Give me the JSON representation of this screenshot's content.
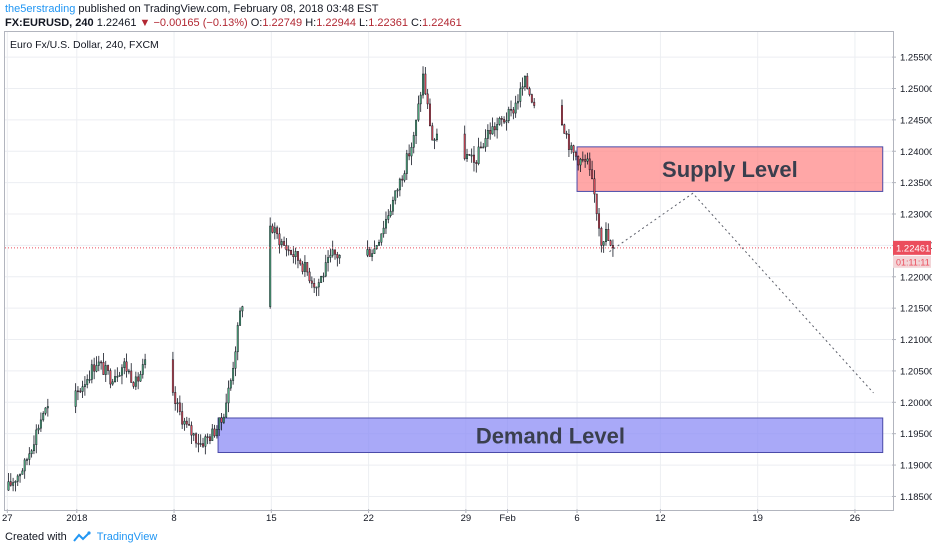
{
  "header": {
    "author": "the5erstrading",
    "published": "published on TradingView.com, February 08, 2018 03:48 EST",
    "symbol_line": "FX:EURUSD, 240",
    "price": "1.22461",
    "change": "−0.00165 (−0.13%)",
    "open_label": "O:",
    "open": "1.22749",
    "high_label": "H:",
    "high": "1.22944",
    "low_label": "L:",
    "low": "1.22361",
    "close_label": "C:",
    "close": "1.22461"
  },
  "footer": {
    "created_with": "Created with",
    "brand": "TradingView"
  },
  "chart_data": {
    "type": "candlestick",
    "title": "Euro Fx/U.S. Dollar, 240, FXCM",
    "colors": {
      "up": "#53b987",
      "down": "#eb4d5c",
      "wick": "#131722",
      "supply_fill": "#ff8a8a",
      "demand_fill": "#8c8cf5",
      "last_price": "#eb4d5c"
    },
    "y_ticks": [
      "1.18500",
      "1.19000",
      "1.19500",
      "1.20000",
      "1.20500",
      "1.21000",
      "1.21500",
      "1.22000",
      "1.22500",
      "1.23000",
      "1.23500",
      "1.24000",
      "1.24500",
      "1.25000",
      "1.25500"
    ],
    "x_ticks": [
      "27",
      "2018",
      "8",
      "15",
      "22",
      "29",
      "Feb",
      "6",
      "12",
      "19",
      "26"
    ],
    "last_price": 1.22461,
    "countdown": "01:11:11",
    "zones": [
      {
        "label": "Supply Level",
        "from": "2018-02-06T00:00",
        "to": "2018-02-28T00:00",
        "low": 1.2336,
        "high": 1.2407
      },
      {
        "label": "Demand Level",
        "from": "2018-01-11T04:00",
        "to": "2018-02-28T00:00",
        "low": 1.192,
        "high": 1.1975
      }
    ],
    "projection": [
      {
        "x": "2018-02-08T08:00",
        "y": 1.224
      },
      {
        "x": "2018-02-14T08:00",
        "y": 1.2333
      },
      {
        "x": "2018-02-27T08:00",
        "y": 1.2015
      }
    ],
    "waypoints": [
      {
        "x": "2017-12-27T00:00",
        "y": 1.186
      },
      {
        "x": "2017-12-28T08:00",
        "y": 1.19
      },
      {
        "x": "2017-12-29T16:00",
        "y": 1.1985
      },
      {
        "x": "2018-01-01T00:00",
        "y": 1.201
      },
      {
        "x": "2018-01-02T12:00",
        "y": 1.2065
      },
      {
        "x": "2018-01-03T12:00",
        "y": 1.204
      },
      {
        "x": "2018-01-04T12:00",
        "y": 1.206
      },
      {
        "x": "2018-01-05T08:00",
        "y": 1.203
      },
      {
        "x": "2018-01-06T08:00",
        "y": 1.2075
      },
      {
        "x": "2018-01-07T12:00",
        "y": 1.203
      },
      {
        "x": "2018-01-09T00:00",
        "y": 1.196
      },
      {
        "x": "2018-01-10T00:00",
        "y": 1.1935
      },
      {
        "x": "2018-01-10T20:00",
        "y": 1.195
      },
      {
        "x": "2018-01-11T12:00",
        "y": 1.197
      },
      {
        "x": "2018-01-12T04:00",
        "y": 1.2035
      },
      {
        "x": "2018-01-12T20:00",
        "y": 1.214
      },
      {
        "x": "2018-01-13T12:00",
        "y": 1.222
      },
      {
        "x": "2018-01-14T20:00",
        "y": 1.2285
      },
      {
        "x": "2018-01-16T00:00",
        "y": 1.225
      },
      {
        "x": "2018-01-17T04:00",
        "y": 1.2225
      },
      {
        "x": "2018-01-18T08:00",
        "y": 1.2185
      },
      {
        "x": "2018-01-19T12:00",
        "y": 1.2235
      },
      {
        "x": "2018-01-21T00:00",
        "y": 1.223
      },
      {
        "x": "2018-01-22T12:00",
        "y": 1.2245
      },
      {
        "x": "2018-01-24T00:00",
        "y": 1.233
      },
      {
        "x": "2018-01-25T08:00",
        "y": 1.242
      },
      {
        "x": "2018-01-26T00:00",
        "y": 1.252
      },
      {
        "x": "2018-01-26T16:00",
        "y": 1.242
      },
      {
        "x": "2018-01-28T08:00",
        "y": 1.241
      },
      {
        "x": "2018-01-29T16:00",
        "y": 1.238
      },
      {
        "x": "2018-01-30T16:00",
        "y": 1.243
      },
      {
        "x": "2018-02-01T08:00",
        "y": 1.246
      },
      {
        "x": "2018-02-02T08:00",
        "y": 1.251
      },
      {
        "x": "2018-02-03T20:00",
        "y": 1.244
      },
      {
        "x": "2018-02-04T20:00",
        "y": 1.2465
      },
      {
        "x": "2018-02-05T16:00",
        "y": 1.24
      },
      {
        "x": "2018-02-06T08:00",
        "y": 1.2385
      },
      {
        "x": "2018-02-06T20:00",
        "y": 1.238
      },
      {
        "x": "2018-02-07T08:00",
        "y": 1.233
      },
      {
        "x": "2018-02-07T20:00",
        "y": 1.226
      },
      {
        "x": "2018-02-08T04:00",
        "y": 1.227
      },
      {
        "x": "2018-02-08T12:00",
        "y": 1.2246
      }
    ]
  }
}
